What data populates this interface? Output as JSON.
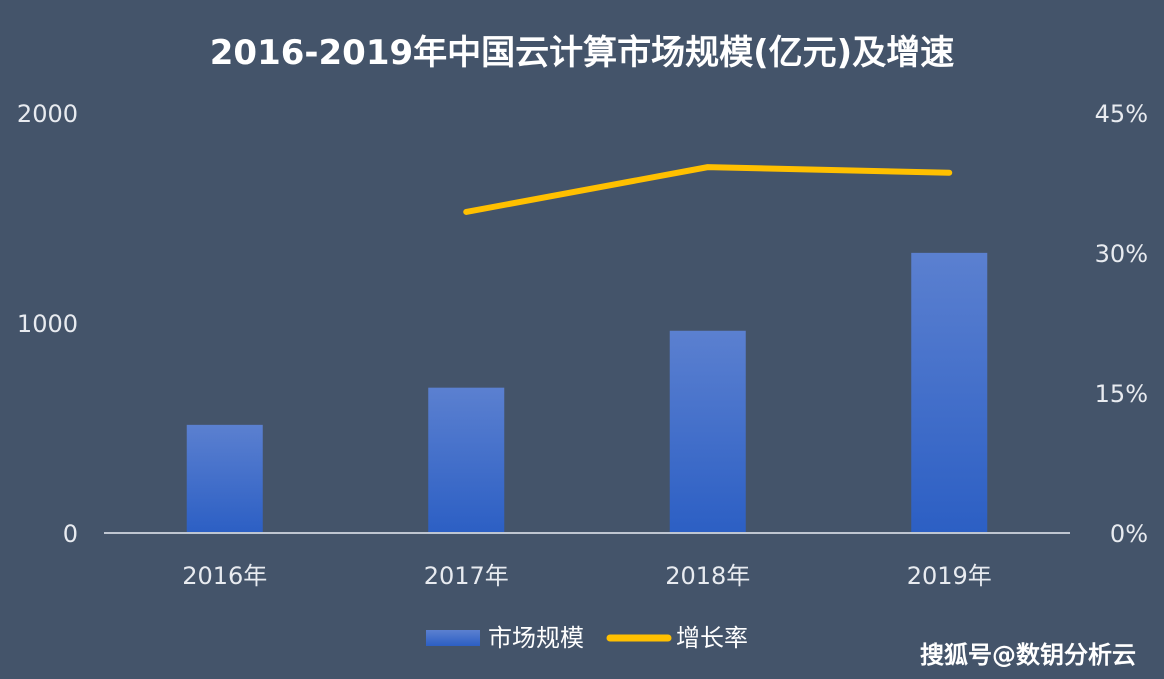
{
  "chart_data": {
    "type": "bar",
    "title": "2016-2019年中国云计算市场规模(亿元)及增速",
    "categories": [
      "2016年",
      "2017年",
      "2018年",
      "2019年"
    ],
    "series": [
      {
        "name": "市场规模",
        "type": "bar",
        "axis": "left",
        "values": [
          515,
          692,
          963,
          1334
        ]
      },
      {
        "name": "增长率",
        "type": "line",
        "axis": "right",
        "values": [
          null,
          34.4,
          39.2,
          38.6
        ]
      }
    ],
    "left_axis": {
      "ylim": [
        0,
        2000
      ],
      "ticks": [
        "0",
        "1000",
        "2000"
      ]
    },
    "right_axis": {
      "ylim": [
        0,
        45
      ],
      "ticks": [
        "0%",
        "15%",
        "30%",
        "45%"
      ]
    },
    "legend": {
      "position": "bottom",
      "items": [
        "市场规模",
        "增长率"
      ]
    },
    "colors": {
      "background": "#44546a",
      "bar_top": "#5b80d0",
      "bar_bottom": "#2c5fc4",
      "line": "#ffc000",
      "axis": "#bfc6d1"
    }
  },
  "watermark": "搜狐号@数钥分析云"
}
